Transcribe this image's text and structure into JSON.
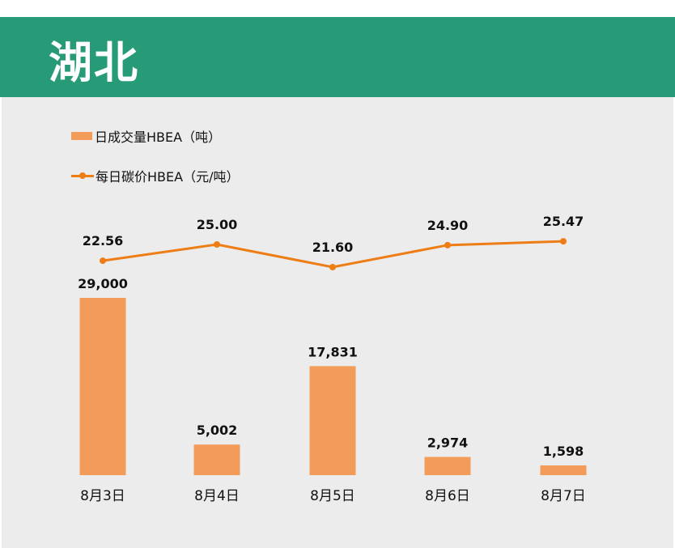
{
  "header": {
    "title": "湖北"
  },
  "colors": {
    "header_bg": "#279a78",
    "bar": "#f39b58",
    "line": "#ed7d14",
    "panel": "#ececec"
  },
  "chart_data": {
    "type": "bar+line",
    "categories": [
      "8月3日",
      "8月4日",
      "8月5日",
      "8月6日",
      "8月7日"
    ],
    "series": [
      {
        "name": "日成交量HBEA（吨）",
        "type": "bar",
        "values": [
          29000,
          5002,
          17831,
          2974,
          1598
        ],
        "labels": [
          "29,000",
          "5,002",
          "17,831",
          "2,974",
          "1,598"
        ]
      },
      {
        "name": "每日碳价HBEA（元/吨）",
        "type": "line",
        "values": [
          22.56,
          25.0,
          21.6,
          24.9,
          25.47
        ],
        "labels": [
          "22.56",
          "25.00",
          "21.60",
          "24.90",
          "25.47"
        ]
      }
    ],
    "legend": "top-left",
    "grid": false
  }
}
